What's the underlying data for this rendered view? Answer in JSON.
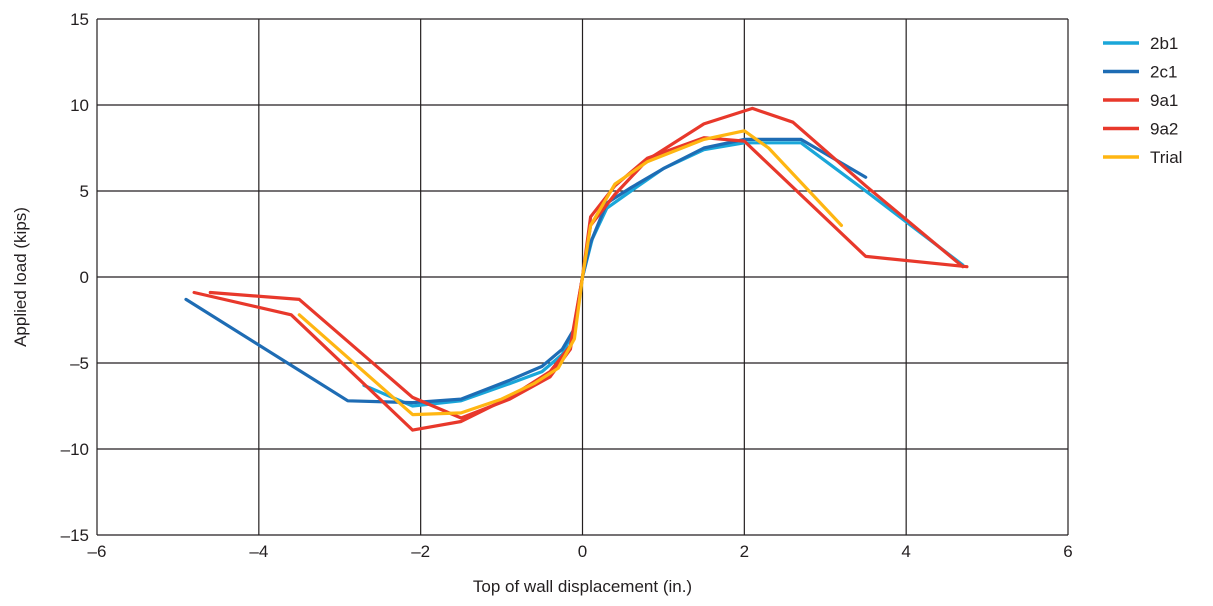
{
  "chart_data": {
    "type": "line",
    "title": "",
    "xlabel": "Top of wall displacement (in.)",
    "ylabel": "Applied load (kips)",
    "xlim": [
      -6,
      6
    ],
    "ylim": [
      -15,
      15
    ],
    "xticks": [
      -6,
      -4,
      -2,
      0,
      2,
      4,
      6
    ],
    "yticks": [
      -15,
      -10,
      -5,
      0,
      5,
      10,
      15
    ],
    "xtick_labels": [
      "–6",
      "–4",
      "–2",
      "0",
      "2",
      "4",
      "6"
    ],
    "ytick_labels": [
      "–15",
      "–10",
      "–5",
      "0",
      "5",
      "10",
      "15"
    ],
    "grid": true,
    "legend_position": "right",
    "series": [
      {
        "name": "2b1",
        "color": "#1aa6d9",
        "x": [
          4.7,
          3.5,
          2.7,
          2.0,
          1.5,
          1.0,
          0.6,
          0.3,
          0.12,
          0.0,
          -0.1,
          -0.25,
          -0.5,
          -0.9,
          -1.5,
          -2.1,
          -2.7
        ],
        "y": [
          0.7,
          5.0,
          7.8,
          7.8,
          7.4,
          6.3,
          5.0,
          4.0,
          2.2,
          0.0,
          -3.0,
          -4.5,
          -5.5,
          -6.2,
          -7.2,
          -7.5,
          -6.3
        ]
      },
      {
        "name": "2c1",
        "color": "#1e6cb4",
        "x": [
          3.5,
          2.7,
          2.0,
          1.5,
          1.0,
          0.6,
          0.3,
          0.1,
          0.0,
          -0.1,
          -0.25,
          -0.5,
          -0.9,
          -1.5,
          -2.1,
          -2.9,
          -4.9
        ],
        "y": [
          5.8,
          8.0,
          8.0,
          7.5,
          6.3,
          5.2,
          4.3,
          2.0,
          0.0,
          -3.0,
          -4.2,
          -5.2,
          -6.0,
          -7.1,
          -7.3,
          -7.2,
          -1.3
        ]
      },
      {
        "name": "9a1",
        "color": "#e8382b",
        "x": [
          4.7,
          3.5,
          2.6,
          2.1,
          1.5,
          0.8,
          0.4,
          0.1,
          0.0,
          -0.15,
          -0.4,
          -0.9,
          -1.5,
          -2.1,
          -3.6,
          -4.8
        ],
        "y": [
          0.6,
          5.3,
          9.0,
          9.8,
          8.9,
          6.8,
          4.8,
          3.0,
          0.0,
          -4.0,
          -5.5,
          -7.0,
          -8.4,
          -8.9,
          -2.2,
          -0.9
        ]
      },
      {
        "name": "9a2",
        "color": "#e8382b",
        "x": [
          4.75,
          3.5,
          2.0,
          1.5,
          0.8,
          0.4,
          0.1,
          0.0,
          -0.15,
          -0.4,
          -0.9,
          -1.5,
          -2.1,
          -3.5,
          -4.6
        ],
        "y": [
          0.6,
          1.2,
          7.9,
          8.1,
          6.9,
          5.3,
          3.5,
          0.0,
          -4.2,
          -5.8,
          -7.1,
          -8.2,
          -7.0,
          -1.3,
          -0.9
        ]
      },
      {
        "name": "Trial",
        "color": "#ffb612",
        "x": [
          3.2,
          2.3,
          2.0,
          1.5,
          0.8,
          0.4,
          0.1,
          0.0,
          -0.1,
          -0.3,
          -0.6,
          -1.0,
          -1.5,
          -2.1,
          -3.5
        ],
        "y": [
          3.0,
          7.5,
          8.5,
          8.0,
          6.7,
          5.4,
          3.0,
          0.0,
          -3.6,
          -5.3,
          -6.2,
          -7.1,
          -7.9,
          -8.0,
          -2.2
        ]
      }
    ]
  }
}
